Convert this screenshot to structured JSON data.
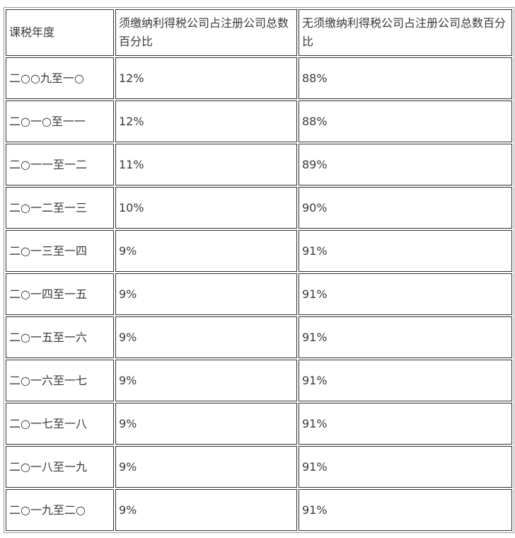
{
  "headers": [
    "课税年度",
    "须缴纳利得税公司占注册公司总数百分比",
    "无须缴纳利得税公司占注册公司总数百分比"
  ],
  "rows": [
    {
      "year": "二○○九至一○",
      "taxable": "12%",
      "non_taxable": "88%"
    },
    {
      "year": "二○一○至一一",
      "taxable": "12%",
      "non_taxable": "88%"
    },
    {
      "year": "二○一一至一二",
      "taxable": "11%",
      "non_taxable": "89%"
    },
    {
      "year": "二○一二至一三",
      "taxable": "10%",
      "non_taxable": "90%"
    },
    {
      "year": "二○一三至一四",
      "taxable": "9%",
      "non_taxable": "91%"
    },
    {
      "year": "二○一四至一五",
      "taxable": "9%",
      "non_taxable": "91%"
    },
    {
      "year": "二○一五至一六",
      "taxable": "9%",
      "non_taxable": "91%"
    },
    {
      "year": "二○一六至一七",
      "taxable": "9%",
      "non_taxable": "91%"
    },
    {
      "year": "二○一七至一八",
      "taxable": "9%",
      "non_taxable": "91%"
    },
    {
      "year": "二○一八至一九",
      "taxable": "9%",
      "non_taxable": "91%"
    },
    {
      "year": "二○一九至二○",
      "taxable": "9%",
      "non_taxable": "91%"
    }
  ]
}
